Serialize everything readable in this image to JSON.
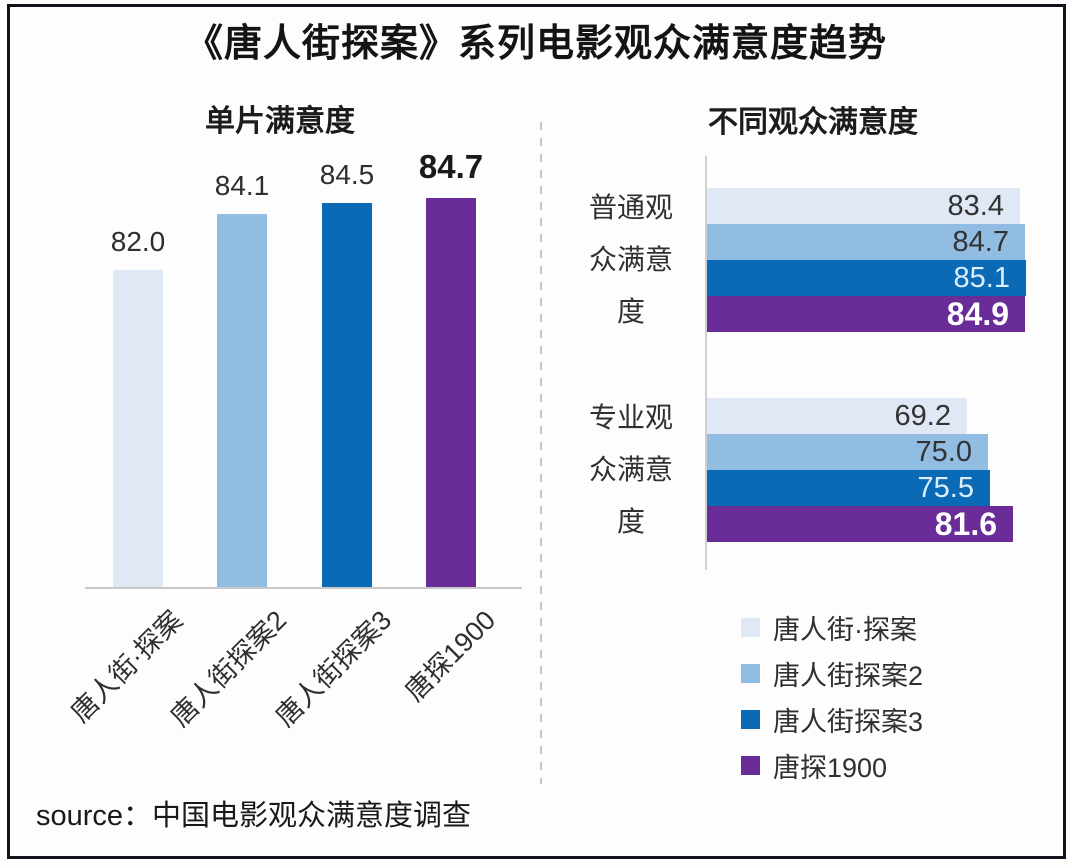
{
  "header": {
    "title": "《唐人街探案》系列电影观众满意度趋势"
  },
  "footer": {
    "source": "source：中国电影观众满意度调查"
  },
  "palette": {
    "series": [
      "#dfe8f4",
      "#92bde2",
      "#0b6ab6",
      "#6a2c96"
    ],
    "frame_border": "#12121d",
    "axis_line": "#c8c8c8",
    "divider": "#c3c3c9",
    "title_text": "#141414",
    "label_text": "#2f2f2f",
    "value_on_light": "#333333",
    "value_on_blue": "#dceefb",
    "value_on_purple": "#ffffff"
  },
  "legend": {
    "items": [
      {
        "label": "唐人街·探案",
        "color": "#dfe8f4"
      },
      {
        "label": "唐人街探案2",
        "color": "#92bde2"
      },
      {
        "label": "唐人街探案3",
        "color": "#0b6ab6"
      },
      {
        "label": "唐探1900",
        "color": "#6a2c96"
      }
    ]
  },
  "chart_data": [
    {
      "type": "bar",
      "orientation": "vertical",
      "title": "单片满意度",
      "categories": [
        "唐人街·探案",
        "唐人街探案2",
        "唐人街探案3",
        "唐探1900"
      ],
      "values": [
        82.0,
        84.1,
        84.5,
        84.7
      ],
      "value_labels": [
        "82.0",
        "84.1",
        "84.5",
        "84.7"
      ],
      "ylim": [
        70,
        85.5
      ],
      "highlight_index": 3,
      "grid": false,
      "xlabel": "",
      "ylabel": ""
    },
    {
      "type": "bar",
      "orientation": "horizontal",
      "title": "不同观众满意度",
      "series": [
        "唐人街·探案",
        "唐人街探案2",
        "唐人街探案3",
        "唐探1900"
      ],
      "groups": [
        {
          "label": "普通观众满意度",
          "values": [
            83.4,
            84.7,
            85.1,
            84.9
          ],
          "value_labels": [
            "83.4",
            "84.7",
            "85.1",
            "84.9"
          ]
        },
        {
          "label": "专业观众满意度",
          "values": [
            69.2,
            75.0,
            75.5,
            81.6
          ],
          "value_labels": [
            "69.2",
            "75.0",
            "75.5",
            "81.6"
          ]
        }
      ],
      "xlim": [
        0,
        88
      ],
      "grid": false,
      "legend_position": "bottom-right"
    }
  ]
}
